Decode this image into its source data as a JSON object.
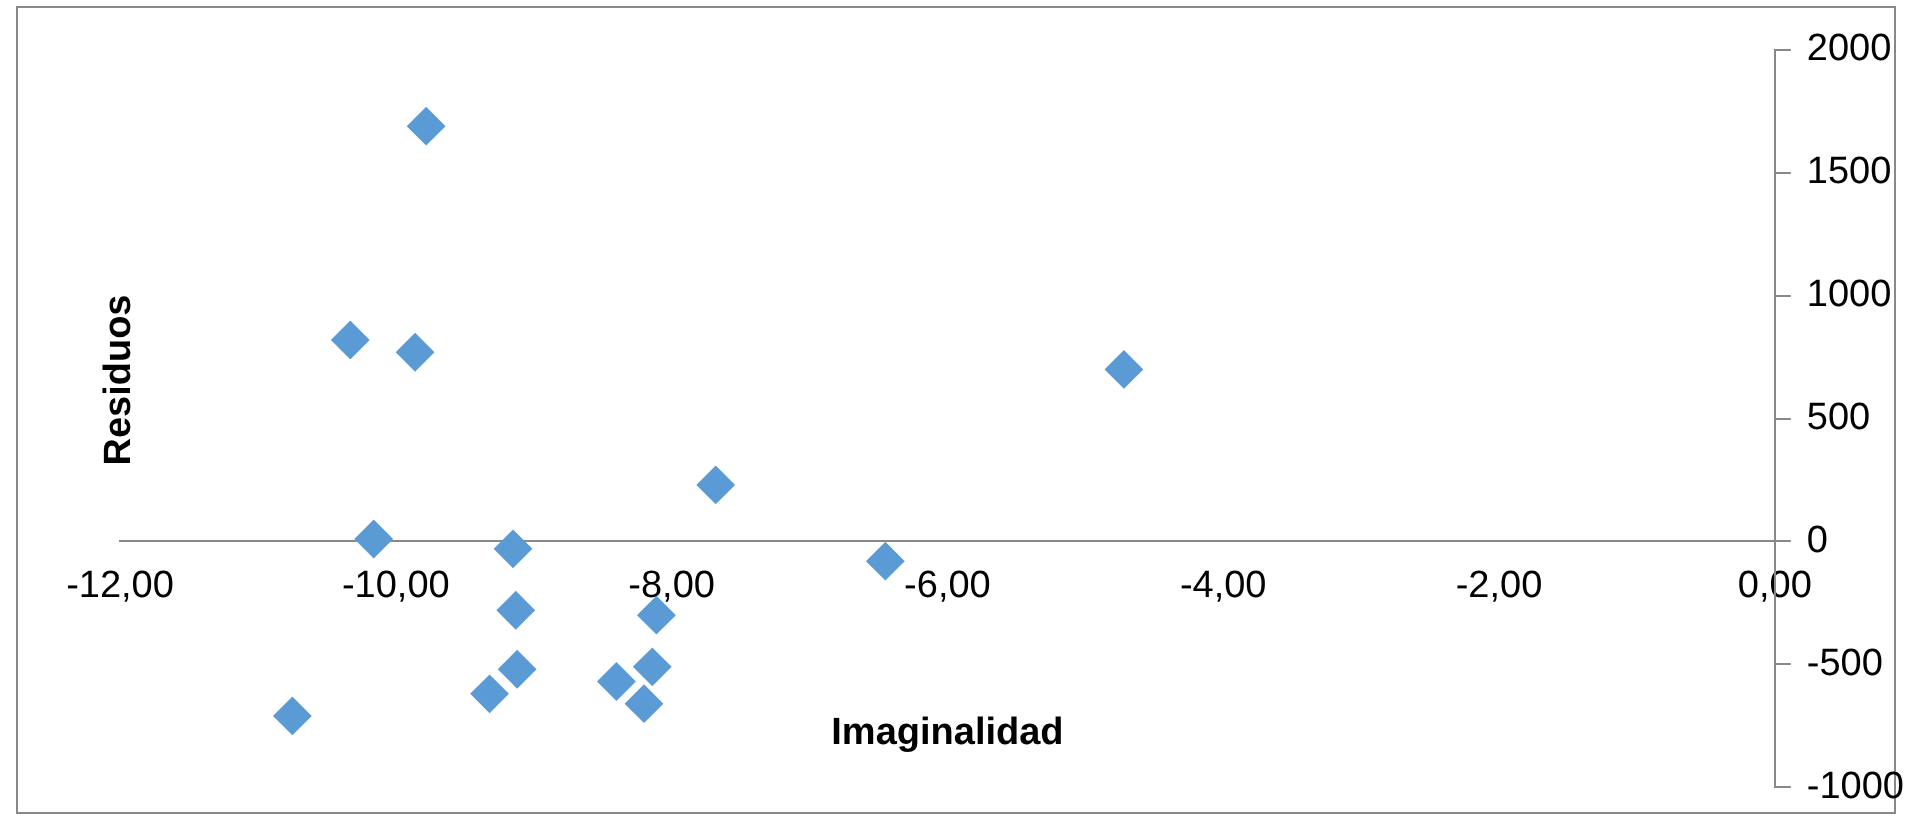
{
  "chart_data": {
    "type": "scatter",
    "xlabel": "Imaginalidad",
    "ylabel": "Residuos",
    "marker": "diamond",
    "grid": false,
    "legend": false,
    "xlim": [
      -12,
      0
    ],
    "xticks": [
      {
        "value": -12,
        "label": "-12,00"
      },
      {
        "value": -10,
        "label": "-10,00"
      },
      {
        "value": -8,
        "label": "-8,00"
      },
      {
        "value": -6,
        "label": "-6,00"
      },
      {
        "value": -4,
        "label": "-4,00"
      },
      {
        "value": -2,
        "label": "-2,00"
      },
      {
        "value": 0,
        "label": "0,00"
      }
    ],
    "ylim": [
      -1000,
      2000
    ],
    "yticks": [
      -1000,
      -500,
      0,
      500,
      1000,
      1500,
      2000
    ],
    "series": [
      {
        "color": "#5b9bd5",
        "x": [
          -9.78,
          -10.33,
          -9.86,
          -10.16,
          -9.15,
          -9.13,
          -9.12,
          -9.32,
          -10.75,
          -8.4,
          -8.14,
          -8.11,
          -8.2,
          -7.68,
          -6.45,
          -4.72
        ],
        "values": [
          1690,
          820,
          770,
          10,
          -30,
          -280,
          -520,
          -620,
          -710,
          -570,
          -510,
          -300,
          -660,
          230,
          -80,
          700
        ]
      }
    ]
  }
}
